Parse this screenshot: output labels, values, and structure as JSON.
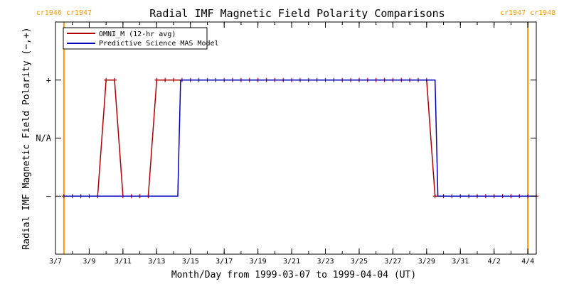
{
  "chart_data": {
    "type": "line",
    "title": "Radial IMF Magnetic Field Polarity Comparisons",
    "xlabel": "Month/Day from 1999-03-07 to 1999-04-04 (UT)",
    "ylabel": "Radial IMF Magnetic Field Polarity (−,+)",
    "x_range": [
      "1999-03-07",
      "1999-04-04T12:00"
    ],
    "x_tick_labels": [
      {
        "date": "1999-03-07",
        "label": "3/7"
      },
      {
        "date": "1999-03-09",
        "label": "3/9"
      },
      {
        "date": "1999-03-11",
        "label": "3/11"
      },
      {
        "date": "1999-03-13",
        "label": "3/13"
      },
      {
        "date": "1999-03-15",
        "label": "3/15"
      },
      {
        "date": "1999-03-17",
        "label": "3/17"
      },
      {
        "date": "1999-03-19",
        "label": "3/19"
      },
      {
        "date": "1999-03-21",
        "label": "3/21"
      },
      {
        "date": "1999-03-23",
        "label": "3/23"
      },
      {
        "date": "1999-03-25",
        "label": "3/25"
      },
      {
        "date": "1999-03-27",
        "label": "3/27"
      },
      {
        "date": "1999-03-29",
        "label": "3/29"
      },
      {
        "date": "1999-03-31",
        "label": "3/31"
      },
      {
        "date": "1999-04-02",
        "label": "4/2"
      },
      {
        "date": "1999-04-04",
        "label": "4/4"
      }
    ],
    "y_categories": [
      {
        "value": -1,
        "label": "−"
      },
      {
        "value": 0,
        "label": "N/A"
      },
      {
        "value": 1,
        "label": "+"
      }
    ],
    "ylim": [
      -2,
      2
    ],
    "grid": false,
    "legend_position": "top-left",
    "series": [
      {
        "name": "OMNI_M (12-hr avg)",
        "color": "#b00000",
        "markers": true,
        "points": [
          [
            "1999-03-07T12:00",
            -1
          ],
          [
            "1999-03-08T00:00",
            -1
          ],
          [
            "1999-03-08T12:00",
            -1
          ],
          [
            "1999-03-09T00:00",
            -1
          ],
          [
            "1999-03-09T12:00",
            -1
          ],
          [
            "1999-03-10T00:00",
            1
          ],
          [
            "1999-03-10T12:00",
            1
          ],
          [
            "1999-03-11T00:00",
            -1
          ],
          [
            "1999-03-11T12:00",
            -1
          ],
          [
            "1999-03-12T00:00",
            -1
          ],
          [
            "1999-03-12T12:00",
            -1
          ],
          [
            "1999-03-13T00:00",
            1
          ],
          [
            "1999-03-13T12:00",
            1
          ],
          [
            "1999-03-14T00:00",
            1
          ],
          [
            "1999-03-14T12:00",
            1
          ],
          [
            "1999-03-15T00:00",
            1
          ],
          [
            "1999-03-15T12:00",
            1
          ],
          [
            "1999-03-16T00:00",
            1
          ],
          [
            "1999-03-16T12:00",
            1
          ],
          [
            "1999-03-17T00:00",
            1
          ],
          [
            "1999-03-17T12:00",
            1
          ],
          [
            "1999-03-18T00:00",
            1
          ],
          [
            "1999-03-18T12:00",
            1
          ],
          [
            "1999-03-19T00:00",
            1
          ],
          [
            "1999-03-19T12:00",
            1
          ],
          [
            "1999-03-20T00:00",
            1
          ],
          [
            "1999-03-20T12:00",
            1
          ],
          [
            "1999-03-21T00:00",
            1
          ],
          [
            "1999-03-21T12:00",
            1
          ],
          [
            "1999-03-22T00:00",
            1
          ],
          [
            "1999-03-22T12:00",
            1
          ],
          [
            "1999-03-23T00:00",
            1
          ],
          [
            "1999-03-23T12:00",
            1
          ],
          [
            "1999-03-24T00:00",
            1
          ],
          [
            "1999-03-24T12:00",
            1
          ],
          [
            "1999-03-25T00:00",
            1
          ],
          [
            "1999-03-25T12:00",
            1
          ],
          [
            "1999-03-26T00:00",
            1
          ],
          [
            "1999-03-26T12:00",
            1
          ],
          [
            "1999-03-27T00:00",
            1
          ],
          [
            "1999-03-27T12:00",
            1
          ],
          [
            "1999-03-28T00:00",
            1
          ],
          [
            "1999-03-28T12:00",
            1
          ],
          [
            "1999-03-29T00:00",
            1
          ],
          [
            "1999-03-29T12:00",
            -1
          ],
          [
            "1999-03-30T00:00",
            -1
          ],
          [
            "1999-03-30T12:00",
            -1
          ],
          [
            "1999-03-31T00:00",
            -1
          ],
          [
            "1999-03-31T12:00",
            -1
          ],
          [
            "1999-04-01T00:00",
            -1
          ],
          [
            "1999-04-01T12:00",
            -1
          ],
          [
            "1999-04-02T00:00",
            -1
          ],
          [
            "1999-04-02T12:00",
            -1
          ],
          [
            "1999-04-03T00:00",
            -1
          ],
          [
            "1999-04-03T12:00",
            -1
          ],
          [
            "1999-04-04T00:00",
            -1
          ],
          [
            "1999-04-04T12:00",
            -1
          ]
        ]
      },
      {
        "name": "Predictive Science MAS Model",
        "color": "#0000c0",
        "markers": false,
        "points": [
          [
            "1999-03-07T12:00",
            -1
          ],
          [
            "1999-03-14T06:00",
            -1
          ],
          [
            "1999-03-14T10:00",
            1
          ],
          [
            "1999-03-29T12:00",
            1
          ],
          [
            "1999-03-29T16:00",
            -1
          ],
          [
            "1999-04-04T12:00",
            -1
          ]
        ]
      }
    ],
    "carrington_rotations": [
      {
        "date": "1999-03-07T12:00",
        "left_label": "cr1946",
        "right_label": "cr1947"
      },
      {
        "date": "1999-04-04T00:00",
        "left_label": "cr1947",
        "right_label": "cr1948"
      }
    ],
    "carrington_line_color": "#ff9900"
  }
}
